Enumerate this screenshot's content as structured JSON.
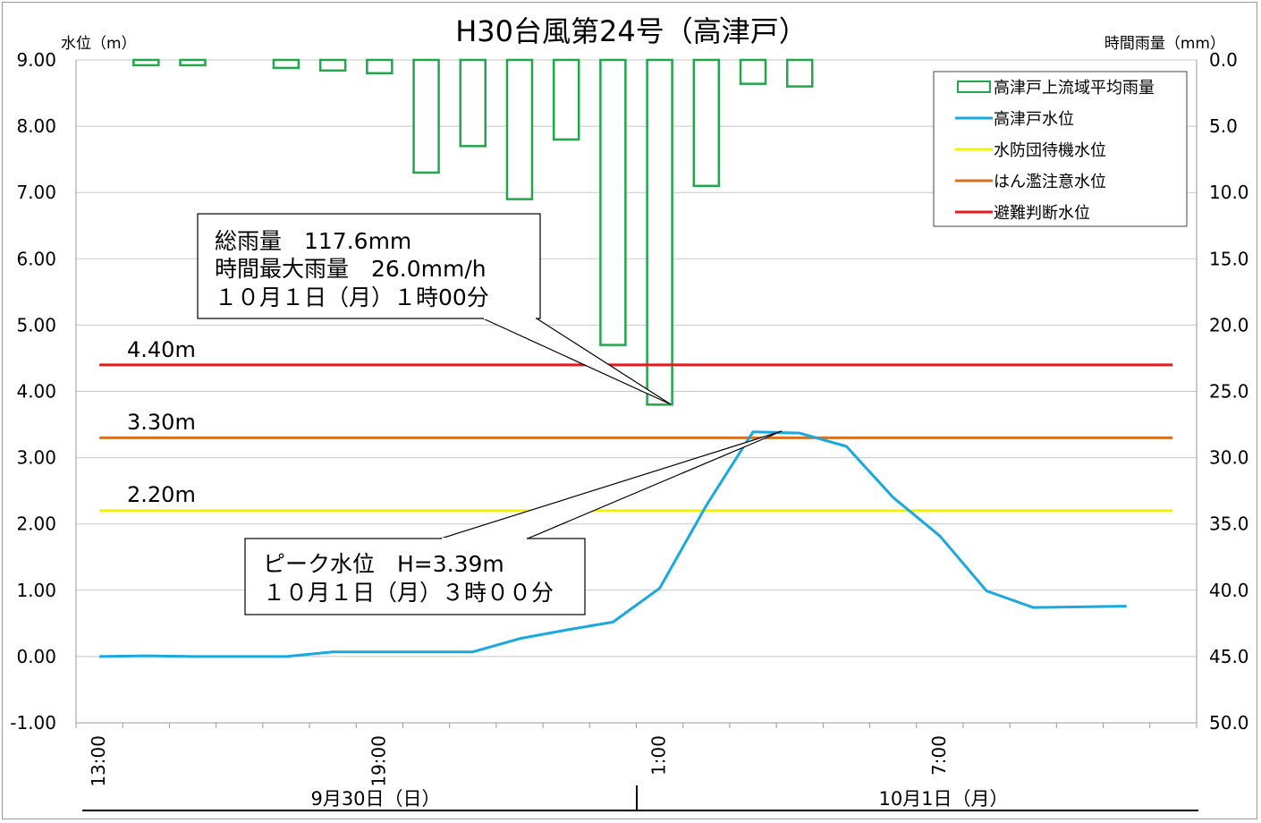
{
  "chart_data": {
    "type": "bar+line",
    "title": "H30台風第24号（高津戸）",
    "y_left": {
      "label": "水位（m）",
      "range": [
        -1.0,
        9.0
      ],
      "ticks": [
        "9.00",
        "8.00",
        "7.00",
        "6.00",
        "5.00",
        "4.00",
        "3.00",
        "2.00",
        "1.00",
        "0.00",
        "-1.00"
      ]
    },
    "y_right": {
      "label": "時間雨量（mm）",
      "range": [
        0.0,
        50.0
      ],
      "inverted": true,
      "ticks": [
        "0.0",
        "5.0",
        "10.0",
        "15.0",
        "20.0",
        "25.0",
        "30.0",
        "35.0",
        "40.0",
        "45.0",
        "50.0"
      ]
    },
    "x_ticks": [
      "13:00",
      "19:00",
      "1:00",
      "7:00"
    ],
    "date_labels": [
      "9月30日（日）",
      "10月1日（月）"
    ],
    "times": [
      "13:00",
      "14:00",
      "15:00",
      "16:00",
      "17:00",
      "18:00",
      "19:00",
      "20:00",
      "21:00",
      "22:00",
      "23:00",
      "0:00",
      "1:00",
      "2:00",
      "3:00",
      "4:00",
      "5:00",
      "6:00",
      "7:00",
      "8:00",
      "9:00",
      "10:00",
      "11:00",
      "12:00"
    ],
    "series": [
      {
        "name": "高津戸上流域平均雨量",
        "type": "bar",
        "axis": "right",
        "color": "#22a64a",
        "values": [
          0,
          0.4,
          0.4,
          0,
          0.6,
          0.8,
          1.0,
          8.5,
          6.5,
          10.5,
          6.0,
          21.5,
          26.0,
          9.5,
          1.8,
          2.0,
          0,
          0,
          0,
          0,
          0,
          0,
          0,
          0
        ]
      },
      {
        "name": "高津戸水位",
        "type": "line",
        "axis": "left",
        "color": "#1aa8e0",
        "values": [
          0.0,
          0.01,
          0.0,
          0.0,
          0.0,
          0.07,
          0.07,
          0.07,
          0.07,
          0.27,
          0.4,
          0.52,
          1.03,
          2.28,
          3.39,
          3.37,
          3.17,
          2.4,
          1.82,
          0.99,
          0.74,
          0.75,
          0.76
        ]
      },
      {
        "name": "水防団待機水位",
        "type": "hline",
        "axis": "left",
        "color": "#f2f200",
        "value": 2.2
      },
      {
        "name": "はん濫注意水位",
        "type": "hline",
        "axis": "left",
        "color": "#d9701e",
        "value": 3.3
      },
      {
        "name": "避難判断水位",
        "type": "hline",
        "axis": "left",
        "color": "#e8191e",
        "value": 4.4
      }
    ],
    "level_labels": [
      "4.40m",
      "3.30m",
      "2.20m"
    ],
    "legend_placement": "top-right",
    "annotations": [
      {
        "lines": [
          "総雨量　117.6mm",
          "時間最大雨量　26.0mm/h",
          "１０月１日（月）１時00分"
        ]
      },
      {
        "lines": [
          "ピーク水位　H=3.39m",
          "１０月１日（月）３時００分"
        ]
      }
    ]
  }
}
